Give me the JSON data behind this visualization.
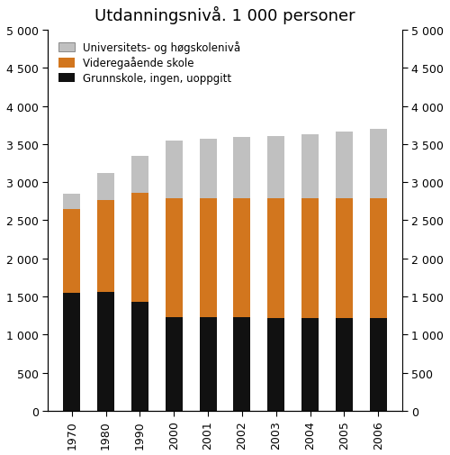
{
  "title": "Utdanningsnivå. 1 000 personer",
  "categories": [
    "1970",
    "1980",
    "1990",
    "2000",
    "2001",
    "2002",
    "2003",
    "2004",
    "2005",
    "2006"
  ],
  "grunnskole": [
    1550,
    1560,
    1430,
    1230,
    1230,
    1225,
    1220,
    1220,
    1220,
    1220
  ],
  "videregaende": [
    1100,
    1200,
    1430,
    1560,
    1560,
    1565,
    1565,
    1565,
    1565,
    1570
  ],
  "universitets": [
    200,
    360,
    480,
    760,
    780,
    800,
    820,
    840,
    875,
    910
  ],
  "color_grunnskole": "#111111",
  "color_videregaende": "#d2761e",
  "color_universitets": "#c0c0c0",
  "legend_labels": [
    "Universitets- og høgskolenivå",
    "Videregaående skole",
    "Grunnskole, ingen, uoppgitt"
  ],
  "ylim": [
    0,
    5000
  ],
  "yticks": [
    0,
    500,
    1000,
    1500,
    2000,
    2500,
    3000,
    3500,
    4000,
    4500,
    5000
  ],
  "bar_width": 0.5,
  "figsize": [
    5.0,
    5.06
  ],
  "dpi": 100
}
